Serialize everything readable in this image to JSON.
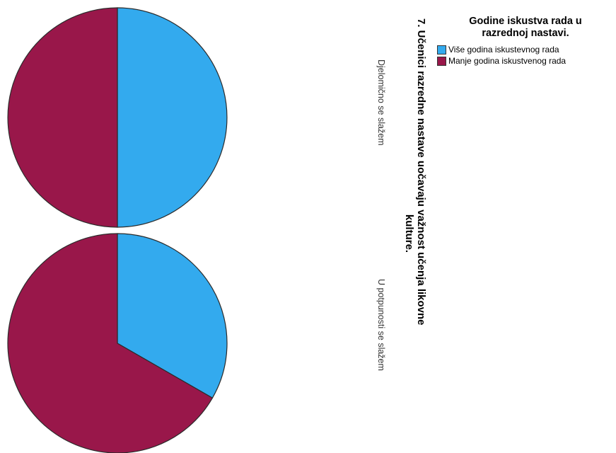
{
  "chart_data": {
    "type": "pie",
    "title": "7. Učenici razredne nastave uočavaju važnost učenja likovne kulture.",
    "title_lines": [
      "7. Učenici razredne nastave uočavaju važnost učenja likovne",
      "kulture."
    ],
    "legend": {
      "title_lines": [
        "Godine iskustva rada u",
        "razrednoj nastavi."
      ],
      "placement": "top-right",
      "items": [
        {
          "label": "Više godina iskustevnog rada",
          "color": "#33aaee"
        },
        {
          "label": "Manje godina iskustvenog rada",
          "color": "#99174a"
        }
      ]
    },
    "panels": [
      {
        "label": "Djelomično se slažem",
        "values": [
          50,
          50
        ]
      },
      {
        "label": "U potpunosti se slažem",
        "values": [
          33.3,
          66.7
        ]
      }
    ]
  }
}
